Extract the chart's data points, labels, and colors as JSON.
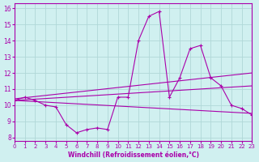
{
  "bg_color": "#d0f0f0",
  "grid_color": "#b0d8d8",
  "line_color": "#aa00aa",
  "xlabel": "Windchill (Refroidissement éolien,°C)",
  "xlim": [
    0,
    23
  ],
  "ylim": [
    7.8,
    16.3
  ],
  "yticks": [
    8,
    9,
    10,
    11,
    12,
    13,
    14,
    15,
    16
  ],
  "xticks": [
    0,
    1,
    2,
    3,
    4,
    5,
    6,
    7,
    8,
    9,
    10,
    11,
    12,
    13,
    14,
    15,
    16,
    17,
    18,
    19,
    20,
    21,
    22,
    23
  ],
  "series": {
    "main": {
      "x": [
        0,
        1,
        2,
        3,
        4,
        5,
        6,
        7,
        8,
        9,
        10,
        11,
        12,
        13,
        14,
        15,
        16,
        17,
        18,
        19,
        20,
        21,
        22,
        23
      ],
      "y": [
        10.3,
        10.5,
        10.3,
        10.0,
        9.9,
        8.8,
        8.3,
        8.5,
        8.6,
        8.5,
        10.5,
        10.5,
        14.0,
        15.5,
        15.8,
        10.5,
        11.7,
        13.5,
        13.7,
        11.7,
        11.2,
        10.0,
        9.8,
        9.4
      ]
    },
    "line1": {
      "x": [
        0,
        23
      ],
      "y": [
        10.3,
        11.2
      ]
    },
    "line2": {
      "x": [
        0,
        23
      ],
      "y": [
        10.3,
        9.5
      ]
    },
    "line3": {
      "x": [
        0,
        23
      ],
      "y": [
        10.4,
        12.0
      ]
    }
  }
}
